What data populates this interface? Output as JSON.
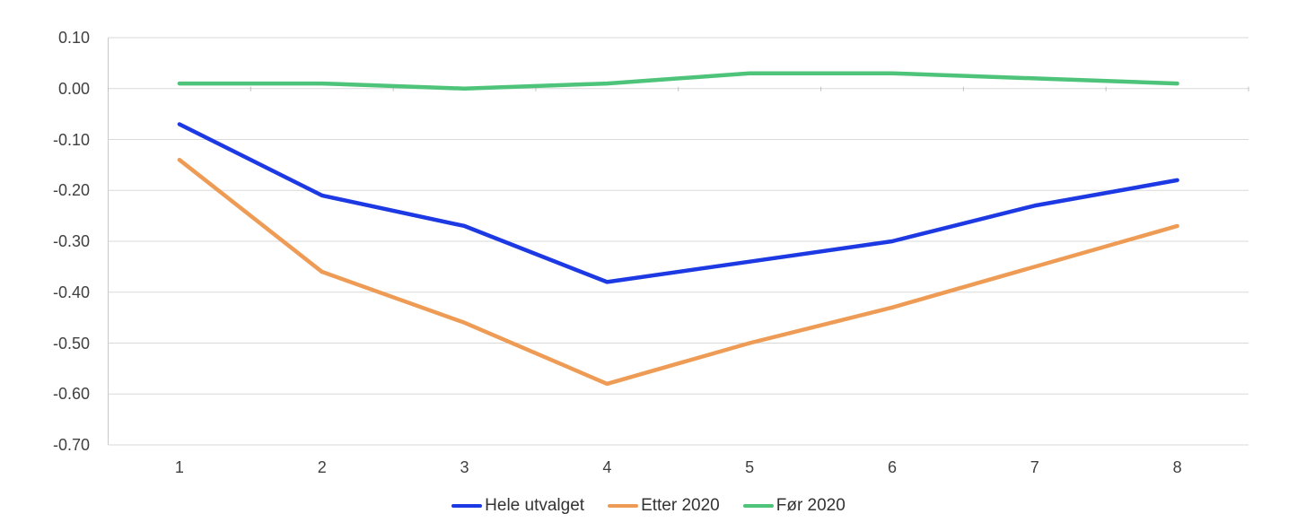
{
  "chart_data": {
    "type": "line",
    "x_labels": [
      "1",
      "2",
      "3",
      "4",
      "5",
      "6",
      "7",
      "8"
    ],
    "y_tick_labels": [
      "0.10",
      "0.00",
      "-0.10",
      "-0.20",
      "-0.30",
      "-0.40",
      "-0.50",
      "-0.60",
      "-0.70"
    ],
    "y_ticks": [
      0.1,
      0.0,
      -0.1,
      -0.2,
      -0.3,
      -0.4,
      -0.5,
      -0.6,
      -0.7
    ],
    "ylim": [
      -0.7,
      0.1
    ],
    "grid": true,
    "legend_position": "bottom",
    "series": [
      {
        "name": "Hele utvalget",
        "color": "#1C39E3",
        "values": [
          -0.07,
          -0.21,
          -0.27,
          -0.38,
          -0.34,
          -0.3,
          -0.23,
          -0.18
        ]
      },
      {
        "name": "Etter 2020",
        "color": "#EE9C55",
        "values": [
          -0.14,
          -0.36,
          -0.46,
          -0.58,
          -0.5,
          -0.43,
          -0.35,
          -0.27
        ]
      },
      {
        "name": "Før 2020",
        "color": "#4DC479",
        "values": [
          0.01,
          0.01,
          0.0,
          0.01,
          0.03,
          0.03,
          0.02,
          0.01
        ]
      }
    ],
    "style": {
      "gridline_color": "#D9D9D9",
      "axis_line_color": "#C8C8C8",
      "tick_color": "#BFBFBF",
      "label_color": "#404040",
      "line_width": 4.5
    }
  }
}
